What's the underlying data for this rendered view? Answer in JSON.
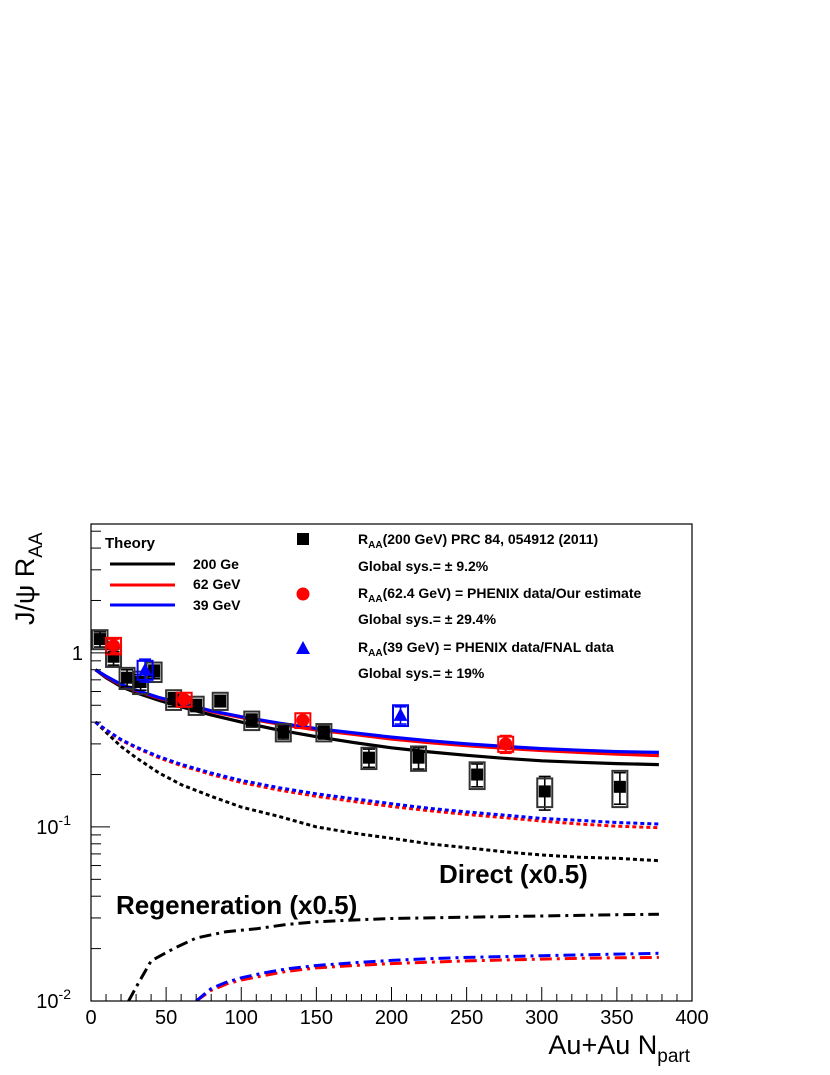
{
  "chart_data": {
    "type": "scatter",
    "x_axis": {
      "label": "Au+Au N",
      "label_sub": "part",
      "range": [
        0,
        400
      ],
      "ticks": [
        "0",
        "50",
        "100",
        "150",
        "200",
        "250",
        "300",
        "350",
        "400"
      ],
      "tick_values": [
        0,
        50,
        100,
        150,
        200,
        250,
        300,
        350,
        400
      ]
    },
    "y_axis": {
      "label": "J/ψ R",
      "label_sub": "AA",
      "scale": "log",
      "range": [
        0.01,
        5.5
      ],
      "ticks": [
        {
          "value": 0.01,
          "base": "10",
          "exp": "-2"
        },
        {
          "value": 0.1,
          "base": "10",
          "exp": "-1"
        },
        {
          "value": 1,
          "base": "1",
          "exp": ""
        }
      ]
    },
    "legend_theory": {
      "title": "Theory",
      "entries": [
        {
          "label": "200 Ge",
          "color": "#000000"
        },
        {
          "label": "62 GeV",
          "color": "#ff0000"
        },
        {
          "label": "39 GeV",
          "color": "#0000ff"
        }
      ]
    },
    "legend_data": [
      {
        "marker": "square",
        "color": "#000000",
        "pre": "R",
        "sub": "AA",
        "text": "(200 GeV) PRC 84, 054912 (2011)",
        "sys": "Global sys.= ± 9.2%"
      },
      {
        "marker": "circle",
        "color": "#ff0000",
        "pre": "R",
        "sub": "AA",
        "text": "(62.4 GeV) = PHENIX data/Our estimate",
        "sys": "Global sys.= ± 29.4%"
      },
      {
        "marker": "triangle",
        "color": "#0000ff",
        "pre": "R",
        "sub": "AA",
        "text": "(39 GeV) = PHENIX data/FNAL data",
        "sys": "Global sys.= ± 19%"
      }
    ],
    "annotations": {
      "direct": "Direct (x0.5)",
      "regeneration": "Regeneration (x0.5)"
    },
    "series": [
      {
        "energy": "200",
        "color": "#000000",
        "marker": "square",
        "points": [
          {
            "x": 6,
            "y": 1.2,
            "elo": 0.12,
            "ehi": 0.12,
            "sys": 0.15
          },
          {
            "x": 15,
            "y": 0.95,
            "elo": 0.1,
            "ehi": 0.1,
            "sys": 0.12
          },
          {
            "x": 24,
            "y": 0.72,
            "elo": 0.08,
            "ehi": 0.08,
            "sys": 0.1
          },
          {
            "x": 33,
            "y": 0.68,
            "elo": 0.07,
            "ehi": 0.07,
            "sys": 0.1
          },
          {
            "x": 42,
            "y": 0.78,
            "elo": 0.07,
            "ehi": 0.07,
            "sys": 0.1
          },
          {
            "x": 55,
            "y": 0.54,
            "elo": 0.05,
            "ehi": 0.05,
            "sys": 0.07
          },
          {
            "x": 70,
            "y": 0.5,
            "elo": 0.04,
            "ehi": 0.04,
            "sys": 0.06
          },
          {
            "x": 86,
            "y": 0.53,
            "elo": 0.04,
            "ehi": 0.04,
            "sys": 0.06
          },
          {
            "x": 107,
            "y": 0.41,
            "elo": 0.035,
            "ehi": 0.035,
            "sys": 0.05
          },
          {
            "x": 128,
            "y": 0.35,
            "elo": 0.03,
            "ehi": 0.03,
            "sys": 0.04
          },
          {
            "x": 155,
            "y": 0.35,
            "elo": 0.03,
            "ehi": 0.03,
            "sys": 0.04
          },
          {
            "x": 185,
            "y": 0.25,
            "elo": 0.03,
            "ehi": 0.03,
            "sys": 0.035
          },
          {
            "x": 218,
            "y": 0.25,
            "elo": 0.035,
            "ehi": 0.035,
            "sys": 0.04
          },
          {
            "x": 257,
            "y": 0.2,
            "elo": 0.03,
            "ehi": 0.03,
            "sys": 0.035
          },
          {
            "x": 302,
            "y": 0.16,
            "elo": 0.035,
            "ehi": 0.035,
            "sys": 0.03
          },
          {
            "x": 352,
            "y": 0.17,
            "elo": 0.035,
            "ehi": 0.035,
            "sys": 0.04
          }
        ]
      },
      {
        "energy": "62.4",
        "color": "#ff0000",
        "marker": "circle",
        "points": [
          {
            "x": 15,
            "y": 1.1,
            "elo": 0.1,
            "ehi": 0.1,
            "sys": 0.12
          },
          {
            "x": 62,
            "y": 0.54,
            "elo": 0.05,
            "ehi": 0.05,
            "sys": 0.05
          },
          {
            "x": 141,
            "y": 0.41,
            "elo": 0.04,
            "ehi": 0.04,
            "sys": 0.04
          },
          {
            "x": 276,
            "y": 0.3,
            "elo": 0.035,
            "ehi": 0.035,
            "sys": 0.03
          }
        ]
      },
      {
        "energy": "39",
        "color": "#0000ff",
        "marker": "triangle",
        "points": [
          {
            "x": 36,
            "y": 0.8,
            "elo": 0.12,
            "ehi": 0.12,
            "sys": 0.1
          },
          {
            "x": 206,
            "y": 0.44,
            "elo": 0.05,
            "ehi": 0.05,
            "sys": 0.06
          }
        ]
      }
    ],
    "theory_curves": [
      {
        "name": "200 total",
        "color": "#000000",
        "style": "solid",
        "x": [
          3,
          10,
          20,
          30,
          45,
          60,
          80,
          100,
          125,
          150,
          175,
          200,
          225,
          250,
          275,
          300,
          325,
          350,
          378
        ],
        "y": [
          0.8,
          0.72,
          0.64,
          0.59,
          0.535,
          0.49,
          0.44,
          0.4,
          0.36,
          0.33,
          0.305,
          0.285,
          0.27,
          0.258,
          0.248,
          0.24,
          0.235,
          0.231,
          0.228
        ]
      },
      {
        "name": "62 total",
        "color": "#ff0000",
        "style": "solid",
        "x": [
          3,
          10,
          20,
          30,
          45,
          60,
          80,
          100,
          125,
          150,
          175,
          200,
          225,
          250,
          275,
          300,
          325,
          350,
          378
        ],
        "y": [
          0.8,
          0.73,
          0.655,
          0.605,
          0.55,
          0.51,
          0.46,
          0.425,
          0.39,
          0.36,
          0.34,
          0.32,
          0.305,
          0.293,
          0.283,
          0.275,
          0.268,
          0.262,
          0.257
        ]
      },
      {
        "name": "39 total",
        "color": "#0000ff",
        "style": "solid",
        "x": [
          3,
          10,
          20,
          30,
          45,
          60,
          80,
          100,
          125,
          150,
          175,
          200,
          225,
          250,
          275,
          300,
          325,
          350,
          378
        ],
        "y": [
          0.8,
          0.735,
          0.66,
          0.61,
          0.555,
          0.515,
          0.465,
          0.43,
          0.395,
          0.367,
          0.347,
          0.328,
          0.313,
          0.3,
          0.29,
          0.282,
          0.276,
          0.271,
          0.268
        ]
      },
      {
        "name": "200 direct",
        "color": "#000000",
        "style": "dotted",
        "x": [
          3,
          10,
          20,
          30,
          45,
          60,
          80,
          100,
          125,
          150,
          175,
          200,
          225,
          250,
          275,
          300,
          325,
          350,
          378
        ],
        "y": [
          0.4,
          0.35,
          0.29,
          0.25,
          0.205,
          0.175,
          0.15,
          0.13,
          0.115,
          0.1,
          0.092,
          0.086,
          0.08,
          0.076,
          0.072,
          0.069,
          0.067,
          0.066,
          0.064
        ]
      },
      {
        "name": "62 direct",
        "color": "#ff0000",
        "style": "dotted",
        "x": [
          3,
          10,
          20,
          30,
          45,
          60,
          80,
          100,
          125,
          150,
          175,
          200,
          225,
          250,
          275,
          300,
          325,
          350,
          378
        ],
        "y": [
          0.4,
          0.36,
          0.315,
          0.285,
          0.25,
          0.225,
          0.2,
          0.18,
          0.163,
          0.15,
          0.14,
          0.131,
          0.124,
          0.118,
          0.113,
          0.108,
          0.104,
          0.101,
          0.099
        ]
      },
      {
        "name": "39 direct",
        "color": "#0000ff",
        "style": "dotted",
        "x": [
          3,
          10,
          20,
          30,
          45,
          60,
          80,
          100,
          125,
          150,
          175,
          200,
          225,
          250,
          275,
          300,
          325,
          350,
          378
        ],
        "y": [
          0.4,
          0.362,
          0.318,
          0.288,
          0.254,
          0.229,
          0.204,
          0.185,
          0.168,
          0.155,
          0.145,
          0.136,
          0.128,
          0.122,
          0.117,
          0.112,
          0.109,
          0.106,
          0.104
        ]
      },
      {
        "name": "200 regeneration",
        "color": "#000000",
        "style": "dashdot",
        "x": [
          25,
          30,
          40,
          55,
          70,
          90,
          110,
          130,
          150,
          175,
          200,
          250,
          300,
          350,
          378
        ],
        "y": [
          0.01,
          0.012,
          0.017,
          0.02,
          0.023,
          0.025,
          0.026,
          0.0275,
          0.0285,
          0.0292,
          0.0298,
          0.0303,
          0.0308,
          0.0313,
          0.0315
        ]
      },
      {
        "name": "62 regeneration",
        "color": "#ff0000",
        "style": "dashdot",
        "x": [
          70,
          80,
          90,
          100,
          115,
          130,
          150,
          175,
          200,
          225,
          250,
          275,
          300,
          325,
          350,
          378
        ],
        "y": [
          0.01,
          0.0115,
          0.0125,
          0.0132,
          0.014,
          0.0148,
          0.0155,
          0.016,
          0.0164,
          0.0167,
          0.017,
          0.0172,
          0.0174,
          0.0176,
          0.0177,
          0.0178
        ]
      },
      {
        "name": "39 regeneration",
        "color": "#0000ff",
        "style": "dashdot",
        "x": [
          70,
          80,
          90,
          100,
          115,
          130,
          150,
          175,
          200,
          225,
          250,
          275,
          300,
          325,
          350,
          378
        ],
        "y": [
          0.01,
          0.0118,
          0.0128,
          0.0136,
          0.0145,
          0.0153,
          0.016,
          0.0166,
          0.0171,
          0.0175,
          0.0178,
          0.018,
          0.0182,
          0.0184,
          0.0186,
          0.0188
        ]
      }
    ]
  }
}
